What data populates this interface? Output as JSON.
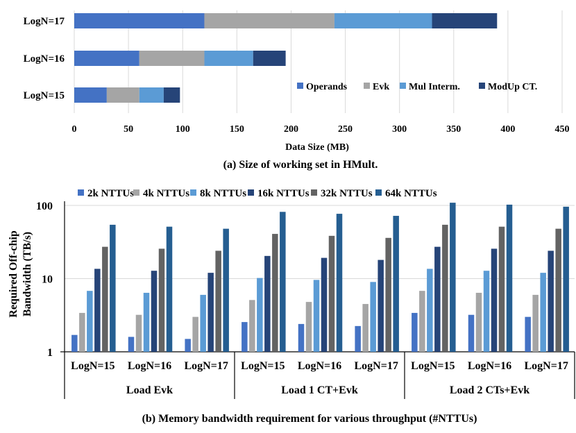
{
  "colors": {
    "operands": "#4472C4",
    "evk": "#A5A5A5",
    "mul_interm": "#5B9BD5",
    "modup_ct": "#264478",
    "nttu_2k": "#4472C4",
    "nttu_4k": "#A5A5A5",
    "nttu_8k": "#5B9BD5",
    "nttu_16k": "#264478",
    "nttu_32k": "#636363",
    "nttu_64k": "#255E91"
  },
  "chart_data": [
    {
      "type": "bar",
      "orientation": "horizontal",
      "stacked": true,
      "title": "(a) Size of working set in HMult.",
      "xlabel": "Data Size (MB)",
      "ylabel": "",
      "xlim": [
        0,
        450
      ],
      "xticks": [
        "0",
        "50",
        "100",
        "150",
        "200",
        "250",
        "300",
        "350",
        "400",
        "450"
      ],
      "categories": [
        "LogN=17",
        "LogN=16",
        "LogN=15"
      ],
      "legend_position": "bottom-right",
      "series": [
        {
          "name": "Operands",
          "color_key": "operands",
          "values": [
            120,
            60,
            30
          ]
        },
        {
          "name": "Evk",
          "color_key": "evk",
          "values": [
            120,
            60,
            30
          ]
        },
        {
          "name": "Mul Interm.",
          "color_key": "mul_interm",
          "values": [
            90,
            45,
            22.5
          ]
        },
        {
          "name": "ModUp CT.",
          "color_key": "modup_ct",
          "values": [
            60,
            30,
            15
          ]
        }
      ]
    },
    {
      "type": "bar",
      "orientation": "vertical",
      "stacked": false,
      "yscale": "log",
      "title": "(b) Memory bandwidth requirement for various throughput (#NTTUs)",
      "ylabel_line1": "Required Off-chip",
      "ylabel_line2": "Bandwidth (TB/s)",
      "ylim": [
        1,
        100
      ],
      "yticks": [
        "1",
        "10",
        "100"
      ],
      "legend_position": "top",
      "groups": [
        "Load Evk",
        "Load 1 CT+Evk",
        "Load 2 CTs+Evk"
      ],
      "categories": [
        "LogN=15",
        "LogN=16",
        "LogN=17",
        "LogN=15",
        "LogN=16",
        "LogN=17",
        "LogN=15",
        "LogN=16",
        "LogN=17"
      ],
      "series": [
        {
          "name": "2k NTTUs",
          "color_key": "nttu_2k",
          "values": [
            1.7,
            1.6,
            1.5,
            2.55,
            2.4,
            2.25,
            3.4,
            3.2,
            3.0
          ]
        },
        {
          "name": "4k NTTUs",
          "color_key": "nttu_4k",
          "values": [
            3.4,
            3.2,
            3.0,
            5.1,
            4.8,
            4.5,
            6.8,
            6.4,
            6.0
          ]
        },
        {
          "name": "8k NTTUs",
          "color_key": "nttu_8k",
          "values": [
            6.8,
            6.4,
            6.0,
            10.2,
            9.6,
            9.0,
            13.6,
            12.8,
            12.0
          ]
        },
        {
          "name": "16k NTTUs",
          "color_key": "nttu_16k",
          "values": [
            13.6,
            12.8,
            12.0,
            20.4,
            19.2,
            18.0,
            27.2,
            25.6,
            24.0
          ]
        },
        {
          "name": "32k NTTUs",
          "color_key": "nttu_32k",
          "values": [
            27.2,
            25.6,
            24.0,
            40.8,
            38.4,
            36.0,
            54.4,
            51.2,
            48.0
          ]
        },
        {
          "name": "64k NTTUs",
          "color_key": "nttu_64k",
          "values": [
            54.4,
            51.2,
            48.0,
            81.6,
            76.8,
            72.0,
            108.8,
            102.4,
            96.0
          ]
        }
      ]
    }
  ]
}
